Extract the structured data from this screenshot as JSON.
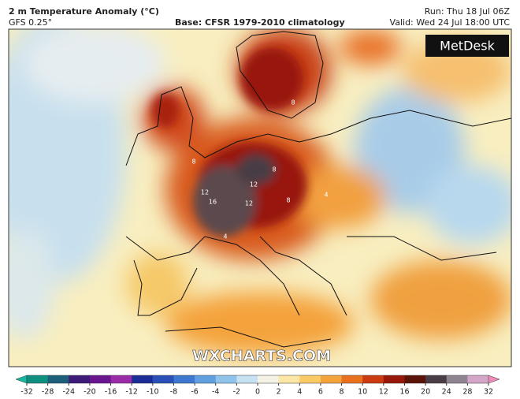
{
  "header": {
    "title": "2 m Temperature Anomaly (°C)",
    "model": "GFS 0.25°",
    "base": "Base: CFSR 1979-2010 climatology",
    "run": "Run: Thu 18 Jul 06Z",
    "valid": "Valid: Wed 24 Jul 18:00 UTC"
  },
  "logo": "MetDesk",
  "watermark": "WXCHARTS.COM",
  "map_labels": [
    16,
    12,
    12,
    12,
    8,
    8,
    8,
    8,
    4,
    4
  ],
  "colorbar": {
    "ticks": [
      -32,
      -28,
      -24,
      -20,
      -16,
      -12,
      -10,
      -8,
      -6,
      -4,
      -2,
      0,
      2,
      4,
      6,
      8,
      10,
      12,
      16,
      20,
      24,
      28,
      32
    ],
    "colors": [
      "#0f8f80",
      "#1d5f7a",
      "#3c1a78",
      "#6a1590",
      "#9a2aa8",
      "#1c2c96",
      "#2a50b8",
      "#3d77cf",
      "#5f9fdf",
      "#8fc3ea",
      "#c6e1f1",
      "#f3f2e4",
      "#fbe6a6",
      "#f9ca66",
      "#f4a23a",
      "#e8701e",
      "#cc3a12",
      "#97180a",
      "#5b1208",
      "#4a3c44",
      "#8e8490",
      "#d3a6c8"
    ],
    "low_color": "#16b8a0",
    "high_color": "#f08ab8"
  }
}
